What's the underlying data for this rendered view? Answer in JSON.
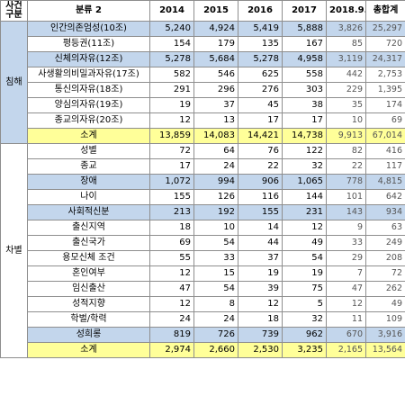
{
  "header": {
    "type": "사건\n구분",
    "category": "분류 2",
    "years": [
      "2014",
      "2015",
      "2016",
      "2017",
      "2018.9.",
      "총합계"
    ]
  },
  "groups": [
    {
      "type": "침해",
      "rows": [
        {
          "name": "인간의존엄성(10조)",
          "values": [
            "5,240",
            "4,924",
            "5,419",
            "5,888",
            "3,826",
            "25,297"
          ],
          "hl": true
        },
        {
          "name": "평등권(11조)",
          "values": [
            "154",
            "179",
            "135",
            "167",
            "85",
            "720"
          ],
          "hl": false
        },
        {
          "name": "신체의자유(12조)",
          "values": [
            "5,278",
            "5,684",
            "5,278",
            "4,958",
            "3,119",
            "24,317"
          ],
          "hl": true
        },
        {
          "name": "사생활의비밀과자유(17조)",
          "values": [
            "582",
            "546",
            "625",
            "558",
            "442",
            "2,753"
          ],
          "hl": false
        },
        {
          "name": "통신의자유(18조)",
          "values": [
            "291",
            "296",
            "276",
            "303",
            "229",
            "1,395"
          ],
          "hl": false
        },
        {
          "name": "양심의자유(19조)",
          "values": [
            "19",
            "37",
            "45",
            "38",
            "35",
            "174"
          ],
          "hl": false
        },
        {
          "name": "종교의자유(20조)",
          "values": [
            "12",
            "13",
            "17",
            "17",
            "10",
            "69"
          ],
          "hl": false
        }
      ],
      "total": {
        "name": "소계",
        "values": [
          "13,859",
          "14,083",
          "14,421",
          "14,738",
          "9,913",
          "67,014"
        ]
      }
    },
    {
      "type": "차별",
      "rows": [
        {
          "name": "성별",
          "values": [
            "72",
            "64",
            "76",
            "122",
            "82",
            "416"
          ],
          "hl": false
        },
        {
          "name": "종교",
          "values": [
            "17",
            "24",
            "22",
            "32",
            "22",
            "117"
          ],
          "hl": false
        },
        {
          "name": "장애",
          "values": [
            "1,072",
            "994",
            "906",
            "1,065",
            "778",
            "4,815"
          ],
          "hl": true
        },
        {
          "name": "나이",
          "values": [
            "155",
            "126",
            "116",
            "144",
            "101",
            "642"
          ],
          "hl": false
        },
        {
          "name": "사회적신분",
          "values": [
            "213",
            "192",
            "155",
            "231",
            "143",
            "934"
          ],
          "hl": true
        },
        {
          "name": "출신지역",
          "values": [
            "18",
            "10",
            "14",
            "12",
            "9",
            "63"
          ],
          "hl": false
        },
        {
          "name": "출신국가",
          "values": [
            "69",
            "54",
            "44",
            "49",
            "33",
            "249"
          ],
          "hl": false
        },
        {
          "name": "용모신체 조건",
          "values": [
            "55",
            "33",
            "37",
            "54",
            "29",
            "208"
          ],
          "hl": false
        },
        {
          "name": "혼인여부",
          "values": [
            "12",
            "15",
            "19",
            "19",
            "7",
            "72"
          ],
          "hl": false
        },
        {
          "name": "임신출산",
          "values": [
            "47",
            "54",
            "39",
            "75",
            "47",
            "262"
          ],
          "hl": false
        },
        {
          "name": "성적지향",
          "values": [
            "12",
            "8",
            "12",
            "5",
            "12",
            "49"
          ],
          "hl": false
        },
        {
          "name": "학벌/학력",
          "values": [
            "24",
            "24",
            "18",
            "32",
            "11",
            "109"
          ],
          "hl": false
        },
        {
          "name": "성희롱",
          "values": [
            "819",
            "726",
            "739",
            "962",
            "670",
            "3,916"
          ],
          "hl": true
        }
      ],
      "total": {
        "name": "소계",
        "values": [
          "2,974",
          "2,660",
          "2,530",
          "3,235",
          "2,165",
          "13,564"
        ]
      }
    }
  ],
  "colors": {
    "highlight": "#c3d6ec",
    "subtotal": "#ffff99",
    "border": "#8e8e8e"
  }
}
